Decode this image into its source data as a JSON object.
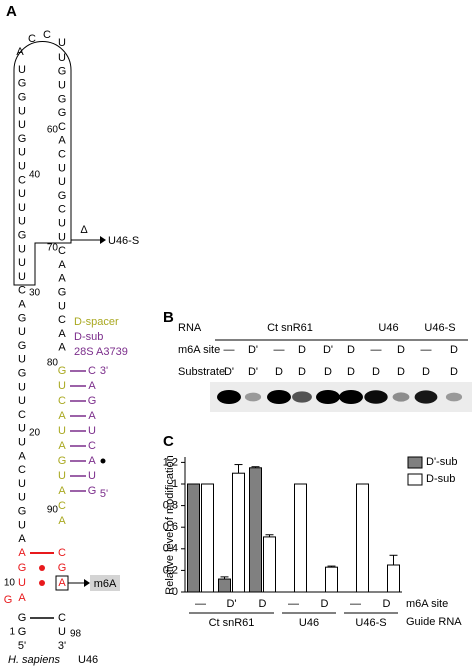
{
  "panel_a": {
    "label": "A",
    "loop": [
      "A",
      "C",
      "C",
      "U"
    ],
    "left_strand": [
      {
        "color": "#000000",
        "letters": [
          "U",
          "G",
          "G",
          "U",
          "U",
          "G",
          "U",
          "U",
          "C",
          "U",
          "U",
          "U",
          "G",
          "U",
          "U",
          "U",
          "C",
          "A",
          "G",
          "U",
          "G",
          "U",
          "G",
          "U",
          "U",
          "C",
          "U",
          "U",
          "A",
          "C",
          "U",
          "U",
          "G",
          "U",
          "A"
        ]
      },
      {
        "color": "#e8191c",
        "letters": [
          "A",
          "G",
          "U",
          "A"
        ]
      },
      {
        "color": "#000000",
        "letters": [
          "G",
          "G"
        ]
      }
    ],
    "bulge": {
      "letter": "G",
      "color": "#e8191c"
    },
    "right_strand": [
      {
        "color": "#000000",
        "letters": [
          "U",
          "G",
          "U",
          "G",
          "G",
          "C",
          "A",
          "C",
          "U",
          "U",
          "G",
          "C",
          "U",
          "U",
          "C",
          "A",
          "A",
          "G",
          "U",
          "C",
          "A",
          "A"
        ]
      },
      {
        "color": "#a9a820",
        "letters": [
          "G",
          "U",
          "C",
          "A",
          "U",
          "A",
          "G",
          "U",
          "A",
          "C",
          "A"
        ]
      },
      {
        "color": "#e8191c",
        "letters": [
          "C",
          "G",
          "A"
        ]
      },
      {
        "color": "#000000",
        "letters": [
          "C",
          "U"
        ]
      }
    ],
    "partner": {
      "color": "#7b2d8b",
      "letters": [
        "C",
        "A",
        "G",
        "A",
        "U",
        "C",
        "A",
        "U",
        "G"
      ]
    },
    "partner_ends": [
      "3'",
      "5'"
    ],
    "numbers": [
      "60",
      "40",
      "70",
      "30",
      "80",
      "20",
      "90",
      "10",
      "1",
      "98"
    ],
    "ends": [
      "5'",
      "3'"
    ],
    "delta": "Δ",
    "arrow_label": "U46-S",
    "m6a": "m6A",
    "legend": [
      {
        "text": "D-spacer",
        "color": "#a9a820"
      },
      {
        "text": "D-sub",
        "color": "#7b2d8b"
      },
      {
        "text": "28S A3739",
        "color": "#7b2d8b"
      }
    ],
    "species": "H. sapiens",
    "rna": "U46"
  },
  "panel_b": {
    "label": "B",
    "row_labels": [
      "RNA",
      "m6A site",
      "Substrate"
    ],
    "groups": [
      {
        "name": "Ct snR61",
        "m6a_site": [
          "—",
          "D'",
          "—",
          "D",
          "D'",
          "D"
        ],
        "substrate": [
          "D'",
          "D'",
          "D",
          "D",
          "D",
          "D"
        ],
        "band_intensity": [
          1,
          0.35,
          1,
          0.65,
          1,
          1
        ]
      },
      {
        "name": "U46",
        "m6a_site": [
          "—",
          "D"
        ],
        "substrate": [
          "D",
          "D"
        ],
        "band_intensity": [
          0.95,
          0.4
        ]
      },
      {
        "name": "U46-S",
        "m6a_site": [
          "—",
          "D"
        ],
        "substrate": [
          "D",
          "D"
        ],
        "band_intensity": [
          0.9,
          0.35
        ]
      }
    ]
  },
  "chart_data": {
    "type": "bar",
    "label": "C",
    "y_label": "Relative level of modification",
    "category_axis_label": "m6A site",
    "group_axis_label": "Guide RNA",
    "groups": [
      {
        "name": "Ct snR61",
        "categories": [
          "—",
          "D'",
          "D"
        ]
      },
      {
        "name": "U46",
        "categories": [
          "—",
          "D"
        ]
      },
      {
        "name": "U46-S",
        "categories": [
          "—",
          "D"
        ]
      }
    ],
    "series": [
      {
        "name": "D'-sub",
        "color": "#808080",
        "values": [
          1,
          0.12,
          1.15,
          null,
          null,
          null,
          null
        ],
        "errors": [
          null,
          0.02,
          0.01,
          null,
          null,
          null,
          null
        ]
      },
      {
        "name": "D-sub",
        "color": "#ffffff",
        "values": [
          1,
          1.1,
          0.51,
          1,
          0.23,
          1,
          0.25
        ],
        "errors": [
          null,
          0.08,
          0.02,
          null,
          0.01,
          null,
          0.09
        ]
      }
    ],
    "ylim": [
      0,
      1.25
    ],
    "yticks": [
      0,
      0.2,
      0.4,
      0.6,
      0.8,
      1,
      1.2
    ],
    "legend": "upper right"
  }
}
